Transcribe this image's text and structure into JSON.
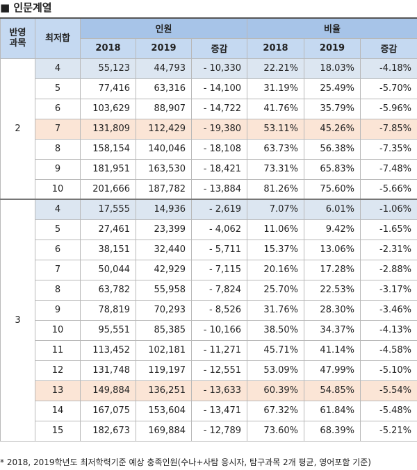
{
  "title": "■ 인문계열",
  "header": {
    "subject": [
      "반영",
      "과목"
    ],
    "min_sum": "최저합",
    "people": "인원",
    "ratio": "비율",
    "people_cols": [
      "2018",
      "2019",
      "증감"
    ],
    "ratio_cols": [
      "2018",
      "2019",
      "증감"
    ]
  },
  "groups": [
    {
      "subject": "2",
      "rows": [
        {
          "min": "4",
          "cells": [
            "55,123",
            "44,793",
            "- 10,330",
            "22.21%",
            "18.03%",
            "-4.18%"
          ],
          "highlight": "#dce6f1"
        },
        {
          "min": "5",
          "cells": [
            "77,416",
            "63,316",
            "- 14,100",
            "31.19%",
            "25.49%",
            "-5.70%"
          ]
        },
        {
          "min": "6",
          "cells": [
            "103,629",
            "88,907",
            "- 14,722",
            "41.76%",
            "35.79%",
            "-5.96%"
          ]
        },
        {
          "min": "7",
          "cells": [
            "131,809",
            "112,429",
            "- 19,380",
            "53.11%",
            "45.26%",
            "-7.85%"
          ],
          "highlight": "#fbe5d6"
        },
        {
          "min": "8",
          "cells": [
            "158,154",
            "140,046",
            "- 18,108",
            "63.73%",
            "56.38%",
            "-7.35%"
          ]
        },
        {
          "min": "9",
          "cells": [
            "181,951",
            "163,530",
            "- 18,421",
            "73.31%",
            "65.83%",
            "-7.48%"
          ]
        },
        {
          "min": "10",
          "cells": [
            "201,666",
            "187,782",
            "- 13,884",
            "81.26%",
            "75.60%",
            "-5.66%"
          ]
        }
      ]
    },
    {
      "subject": "3",
      "rows": [
        {
          "min": "4",
          "cells": [
            "17,555",
            "14,936",
            "- 2,619",
            "7.07%",
            "6.01%",
            "-1.06%"
          ],
          "highlight": "#dce6f1"
        },
        {
          "min": "5",
          "cells": [
            "27,461",
            "23,399",
            "- 4,062",
            "11.06%",
            "9.42%",
            "-1.65%"
          ]
        },
        {
          "min": "6",
          "cells": [
            "38,151",
            "32,440",
            "- 5,711",
            "15.37%",
            "13.06%",
            "-2.31%"
          ]
        },
        {
          "min": "7",
          "cells": [
            "50,044",
            "42,929",
            "- 7,115",
            "20.16%",
            "17.28%",
            "-2.88%"
          ]
        },
        {
          "min": "8",
          "cells": [
            "63,782",
            "55,958",
            "- 7,824",
            "25.70%",
            "22.53%",
            "-3.17%"
          ]
        },
        {
          "min": "9",
          "cells": [
            "78,819",
            "70,293",
            "- 8,526",
            "31.76%",
            "28.30%",
            "-3.46%"
          ]
        },
        {
          "min": "10",
          "cells": [
            "95,551",
            "85,385",
            "- 10,166",
            "38.50%",
            "34.37%",
            "-4.13%"
          ]
        },
        {
          "min": "11",
          "cells": [
            "113,452",
            "102,181",
            "- 11,271",
            "45.71%",
            "41.14%",
            "-4.58%"
          ]
        },
        {
          "min": "12",
          "cells": [
            "131,748",
            "119,197",
            "- 12,551",
            "53.09%",
            "47.99%",
            "-5.10%"
          ]
        },
        {
          "min": "13",
          "cells": [
            "149,884",
            "136,251",
            "- 13,633",
            "60.39%",
            "54.85%",
            "-5.54%"
          ],
          "highlight": "#fbe5d6"
        },
        {
          "min": "14",
          "cells": [
            "167,075",
            "153,604",
            "- 13,471",
            "67.32%",
            "61.84%",
            "-5.48%"
          ]
        },
        {
          "min": "15",
          "cells": [
            "182,673",
            "169,884",
            "- 12,789",
            "73.60%",
            "68.39%",
            "-5.21%"
          ]
        }
      ]
    }
  ],
  "footnote": "* 2018, 2019학년도 최저학력기준 예상 충족인원(수나+사탐 응시자, 탐구과목 2개 평균, 영어포함 기준)"
}
